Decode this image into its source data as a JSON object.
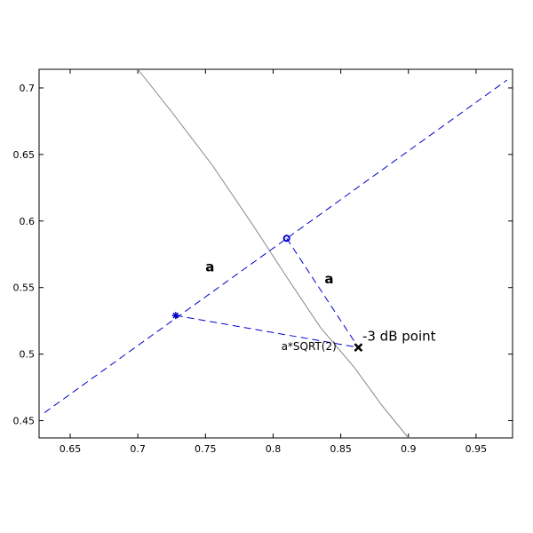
{
  "chart_data": {
    "type": "line",
    "title": "",
    "xlabel": "",
    "ylabel": "",
    "xlim": [
      0.627,
      0.977
    ],
    "ylim": [
      0.437,
      0.714
    ],
    "grid": false,
    "x_ticks": [
      "0.65",
      "0.7",
      "0.75",
      "0.8",
      "0.85",
      "0.9",
      "0.95"
    ],
    "y_ticks": [
      "0.45",
      "0.5",
      "0.55",
      "0.6",
      "0.65",
      "0.7"
    ],
    "series": [
      {
        "style": "solid",
        "color": "#888888",
        "x": [
          0.7,
          0.725,
          0.755,
          0.785,
          0.81,
          0.835,
          0.86,
          0.88,
          0.9
        ],
        "y": [
          0.714,
          0.682,
          0.642,
          0.597,
          0.558,
          0.52,
          0.49,
          0.462,
          0.437
        ]
      },
      {
        "style": "dashed",
        "color": "#0000cc",
        "x": [
          0.631,
          0.973
        ],
        "y": [
          0.456,
          0.706
        ]
      },
      {
        "style": "dashed",
        "color": "#0000cc",
        "x": [
          0.728,
          0.863
        ],
        "y": [
          0.529,
          0.505
        ]
      },
      {
        "style": "dashed",
        "color": "#0000cc",
        "x": [
          0.81,
          0.863
        ],
        "y": [
          0.587,
          0.505
        ]
      }
    ],
    "markers": [
      {
        "shape": "star",
        "color": "#0000cc",
        "x": 0.728,
        "y": 0.529
      },
      {
        "shape": "circle",
        "color": "#0000cc",
        "x": 0.81,
        "y": 0.587
      },
      {
        "shape": "cross",
        "color": "#000000",
        "x": 0.863,
        "y": 0.505
      }
    ],
    "annotations": [
      {
        "text": "a",
        "x": 0.75,
        "y": 0.562,
        "weight": "bold"
      },
      {
        "text": "a",
        "x": 0.838,
        "y": 0.553,
        "weight": "bold"
      },
      {
        "text": "a*SQRT(2)",
        "x": 0.806,
        "y": 0.503,
        "weight": "normal"
      },
      {
        "text": "-3 dB point",
        "x": 0.866,
        "y": 0.51,
        "weight": "normal"
      }
    ]
  }
}
